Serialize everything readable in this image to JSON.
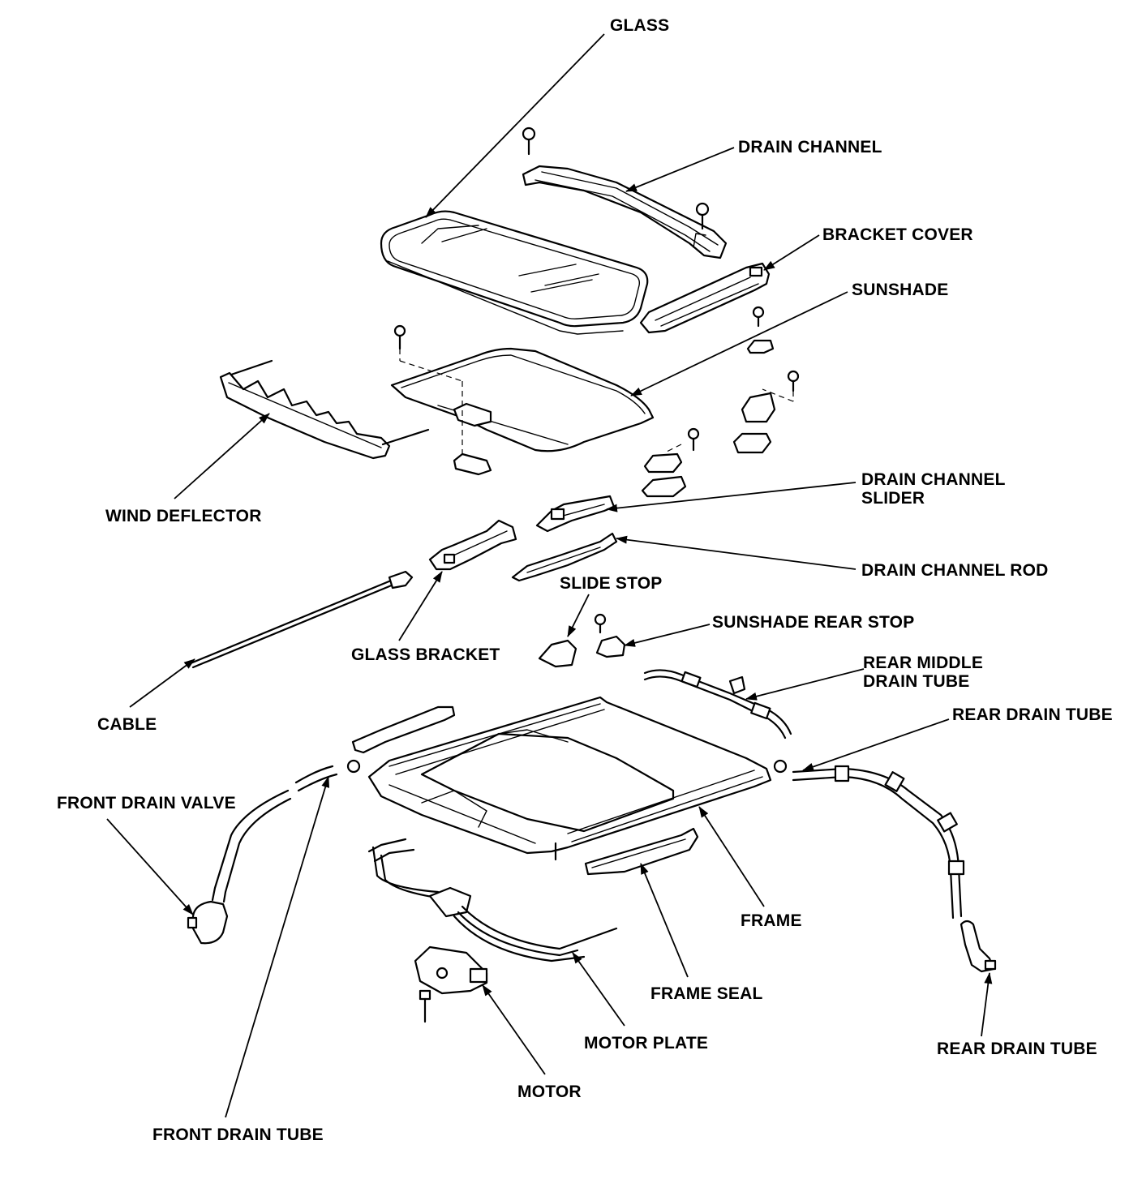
{
  "labels": {
    "glass": "GLASS",
    "drain_channel": "DRAIN CHANNEL",
    "bracket_cover": "BRACKET COVER",
    "sunshade": "SUNSHADE",
    "wind_deflector": "WIND DEFLECTOR",
    "drain_channel_slider": "DRAIN CHANNEL\nSLIDER",
    "drain_channel_rod": "DRAIN CHANNEL ROD",
    "slide_stop": "SLIDE STOP",
    "sunshade_rear_stop": "SUNSHADE REAR STOP",
    "glass_bracket": "GLASS BRACKET",
    "rear_middle_drain_tube": "REAR MIDDLE\nDRAIN TUBE",
    "cable": "CABLE",
    "rear_drain_tube_upper": "REAR DRAIN TUBE",
    "front_drain_valve": "FRONT DRAIN VALVE",
    "frame": "FRAME",
    "frame_seal": "FRAME SEAL",
    "motor_plate": "MOTOR PLATE",
    "motor": "MOTOR",
    "rear_drain_tube_lower": "REAR DRAIN TUBE",
    "front_drain_tube": "FRONT DRAIN TUBE"
  }
}
